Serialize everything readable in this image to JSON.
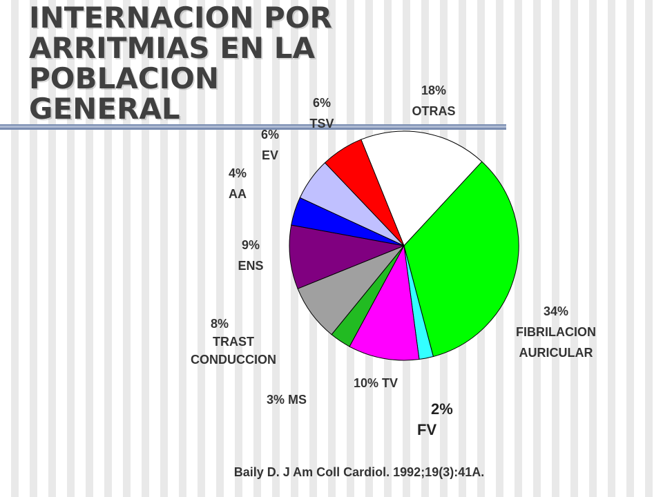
{
  "title": "INTERNACION POR\nARRITMIAS EN LA\nPOBLACION\nGENERAL",
  "citation": "Baily D. J Am Coll Cardiol. 1992;19(3):41A.",
  "chart_data": {
    "type": "pie",
    "title": "INTERNACION POR ARRITMIAS EN LA POBLACION GENERAL",
    "slices": [
      {
        "label": "OTRAS",
        "value": 18,
        "color": "#ffffff",
        "pct_text": "18%",
        "name_text": "OTRAS"
      },
      {
        "label": "FIBRILACION AURICULAR",
        "value": 34,
        "color": "#00ff00",
        "pct_text": "34%",
        "name_text": "FIBRILACION AURICULAR"
      },
      {
        "label": "FV",
        "value": 2,
        "color": "#33ffff",
        "pct_text": "2%",
        "name_text": "FV"
      },
      {
        "label": "TV",
        "value": 10,
        "color": "#ff00ff",
        "pct_text": "10%",
        "name_text": "TV"
      },
      {
        "label": "MS",
        "value": 3,
        "color": "#22bb22",
        "pct_text": "3%",
        "name_text": "MS"
      },
      {
        "label": "TRAST CONDUCCION",
        "value": 8,
        "color": "#a0a0a0",
        "pct_text": "8%",
        "name_text": "TRAST CONDUCCION"
      },
      {
        "label": "ENS",
        "value": 9,
        "color": "#800080",
        "pct_text": "9%",
        "name_text": "ENS"
      },
      {
        "label": "AA",
        "value": 4,
        "color": "#0000ff",
        "pct_text": "4%",
        "name_text": "AA"
      },
      {
        "label": "EV",
        "value": 6,
        "color": "#c0c0ff",
        "pct_text": "6%",
        "name_text": "EV"
      },
      {
        "label": "TSV",
        "value": 6,
        "color": "#ff0000",
        "pct_text": "6%",
        "name_text": "TSV"
      }
    ]
  }
}
